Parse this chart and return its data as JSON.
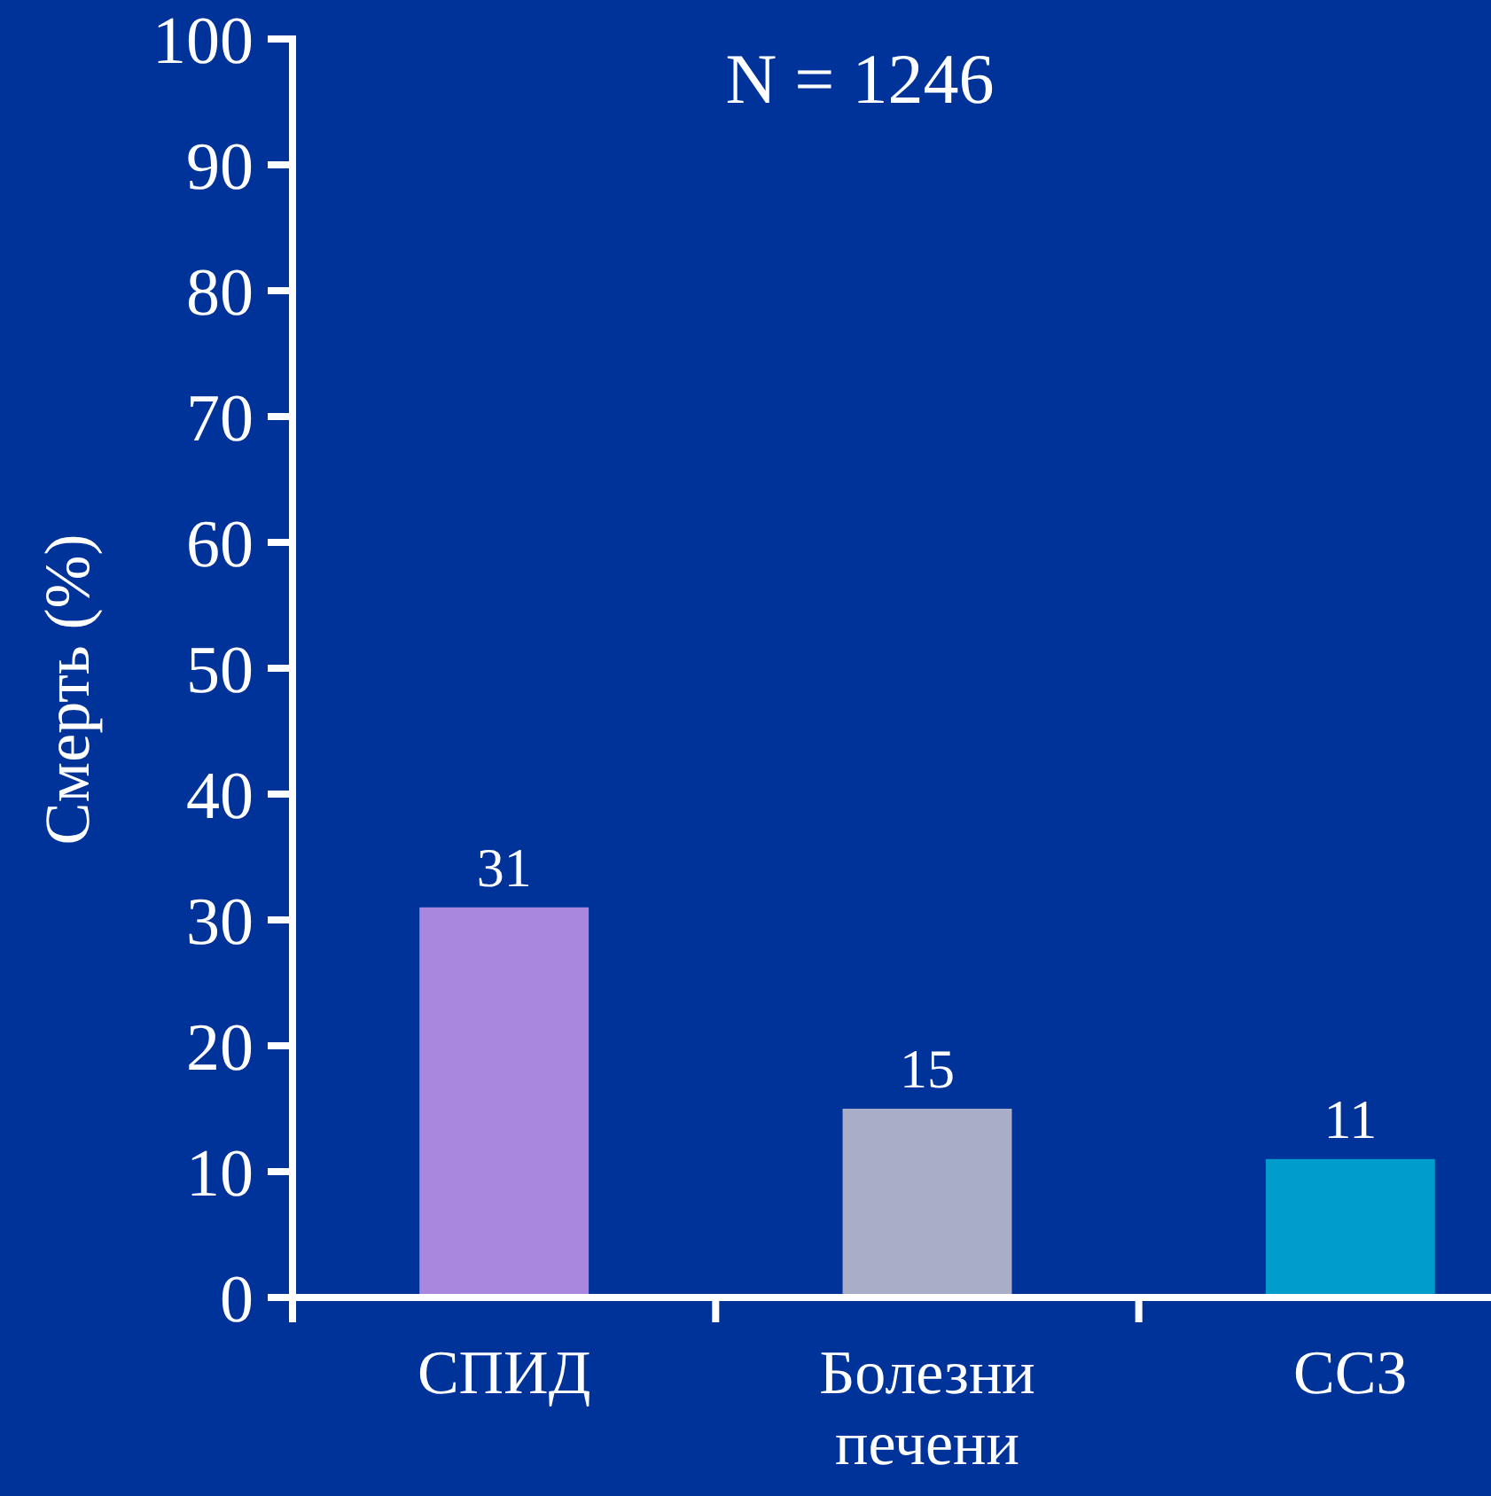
{
  "chart_data": {
    "type": "bar",
    "title": "N = 1246",
    "ylabel": "Смерть (%)",
    "categories": [
      "СПИД",
      "Болезни печени",
      "ССЗ"
    ],
    "values": [
      31,
      15,
      11
    ],
    "colors": [
      "#a987de",
      "#a9adc8",
      "#009ccc"
    ],
    "ylim": [
      0,
      100
    ],
    "yticks": [
      0,
      10,
      20,
      30,
      40,
      50,
      60,
      70,
      80,
      90,
      100
    ],
    "data_labels": true
  }
}
